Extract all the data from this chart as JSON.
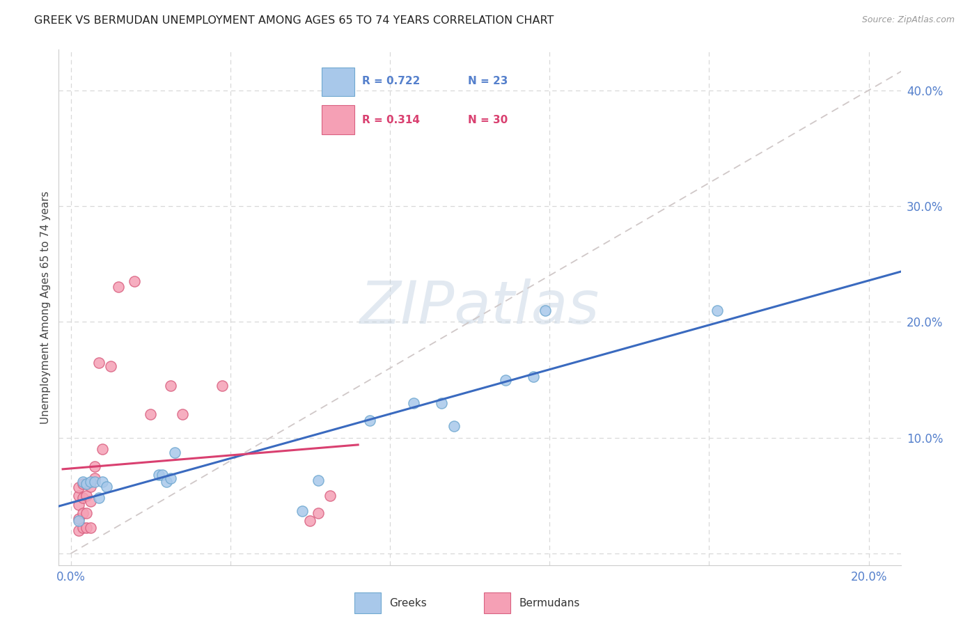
{
  "title": "GREEK VS BERMUDAN UNEMPLOYMENT AMONG AGES 65 TO 74 YEARS CORRELATION CHART",
  "source": "Source: ZipAtlas.com",
  "ylabel": "Unemployment Among Ages 65 to 74 years",
  "xlim": [
    -0.003,
    0.208
  ],
  "ylim": [
    -0.01,
    0.435
  ],
  "xticks": [
    0.0,
    0.04,
    0.08,
    0.12,
    0.16,
    0.2
  ],
  "xticklabels_show": [
    "0.0%",
    "",
    "",
    "",
    "",
    "20.0%"
  ],
  "yticks": [
    0.0,
    0.1,
    0.2,
    0.3,
    0.4
  ],
  "yticklabels_show": [
    "",
    "10.0%",
    "20.0%",
    "30.0%",
    "40.0%"
  ],
  "greek_color": "#a8c8ea",
  "greek_edge": "#6fa8d0",
  "bermudan_color": "#f5a0b5",
  "bermudan_edge": "#d96080",
  "blue_line_color": "#3a6abf",
  "pink_line_color": "#d94070",
  "diag_line_color": "#d0c8c8",
  "background_color": "#ffffff",
  "watermark_text": "ZIPatlas",
  "tick_color": "#5580cc",
  "legend_greek_r": "R = 0.722",
  "legend_greek_n": "N = 23",
  "legend_berm_r": "R = 0.314",
  "legend_berm_n": "N = 30",
  "greeks_x": [
    0.002,
    0.003,
    0.004,
    0.005,
    0.006,
    0.007,
    0.008,
    0.009,
    0.022,
    0.023,
    0.024,
    0.025,
    0.026,
    0.058,
    0.062,
    0.075,
    0.086,
    0.093,
    0.096,
    0.109,
    0.116,
    0.119,
    0.162
  ],
  "greeks_y": [
    0.028,
    0.062,
    0.06,
    0.062,
    0.062,
    0.048,
    0.062,
    0.058,
    0.068,
    0.068,
    0.062,
    0.065,
    0.087,
    0.037,
    0.063,
    0.115,
    0.13,
    0.13,
    0.11,
    0.15,
    0.153,
    0.21,
    0.21
  ],
  "bermudans_x": [
    0.002,
    0.002,
    0.002,
    0.002,
    0.002,
    0.003,
    0.003,
    0.003,
    0.003,
    0.004,
    0.004,
    0.004,
    0.004,
    0.005,
    0.005,
    0.005,
    0.006,
    0.006,
    0.007,
    0.008,
    0.01,
    0.012,
    0.016,
    0.02,
    0.025,
    0.028,
    0.038,
    0.06,
    0.062,
    0.065
  ],
  "bermudans_y": [
    0.02,
    0.03,
    0.042,
    0.05,
    0.057,
    0.022,
    0.035,
    0.048,
    0.06,
    0.022,
    0.035,
    0.05,
    0.06,
    0.022,
    0.045,
    0.058,
    0.065,
    0.075,
    0.165,
    0.09,
    0.162,
    0.23,
    0.235,
    0.12,
    0.145,
    0.12,
    0.145,
    0.028,
    0.035,
    0.05
  ],
  "marker_size": 120,
  "grid_color": "#d8d8d8",
  "spine_color": "#cccccc"
}
